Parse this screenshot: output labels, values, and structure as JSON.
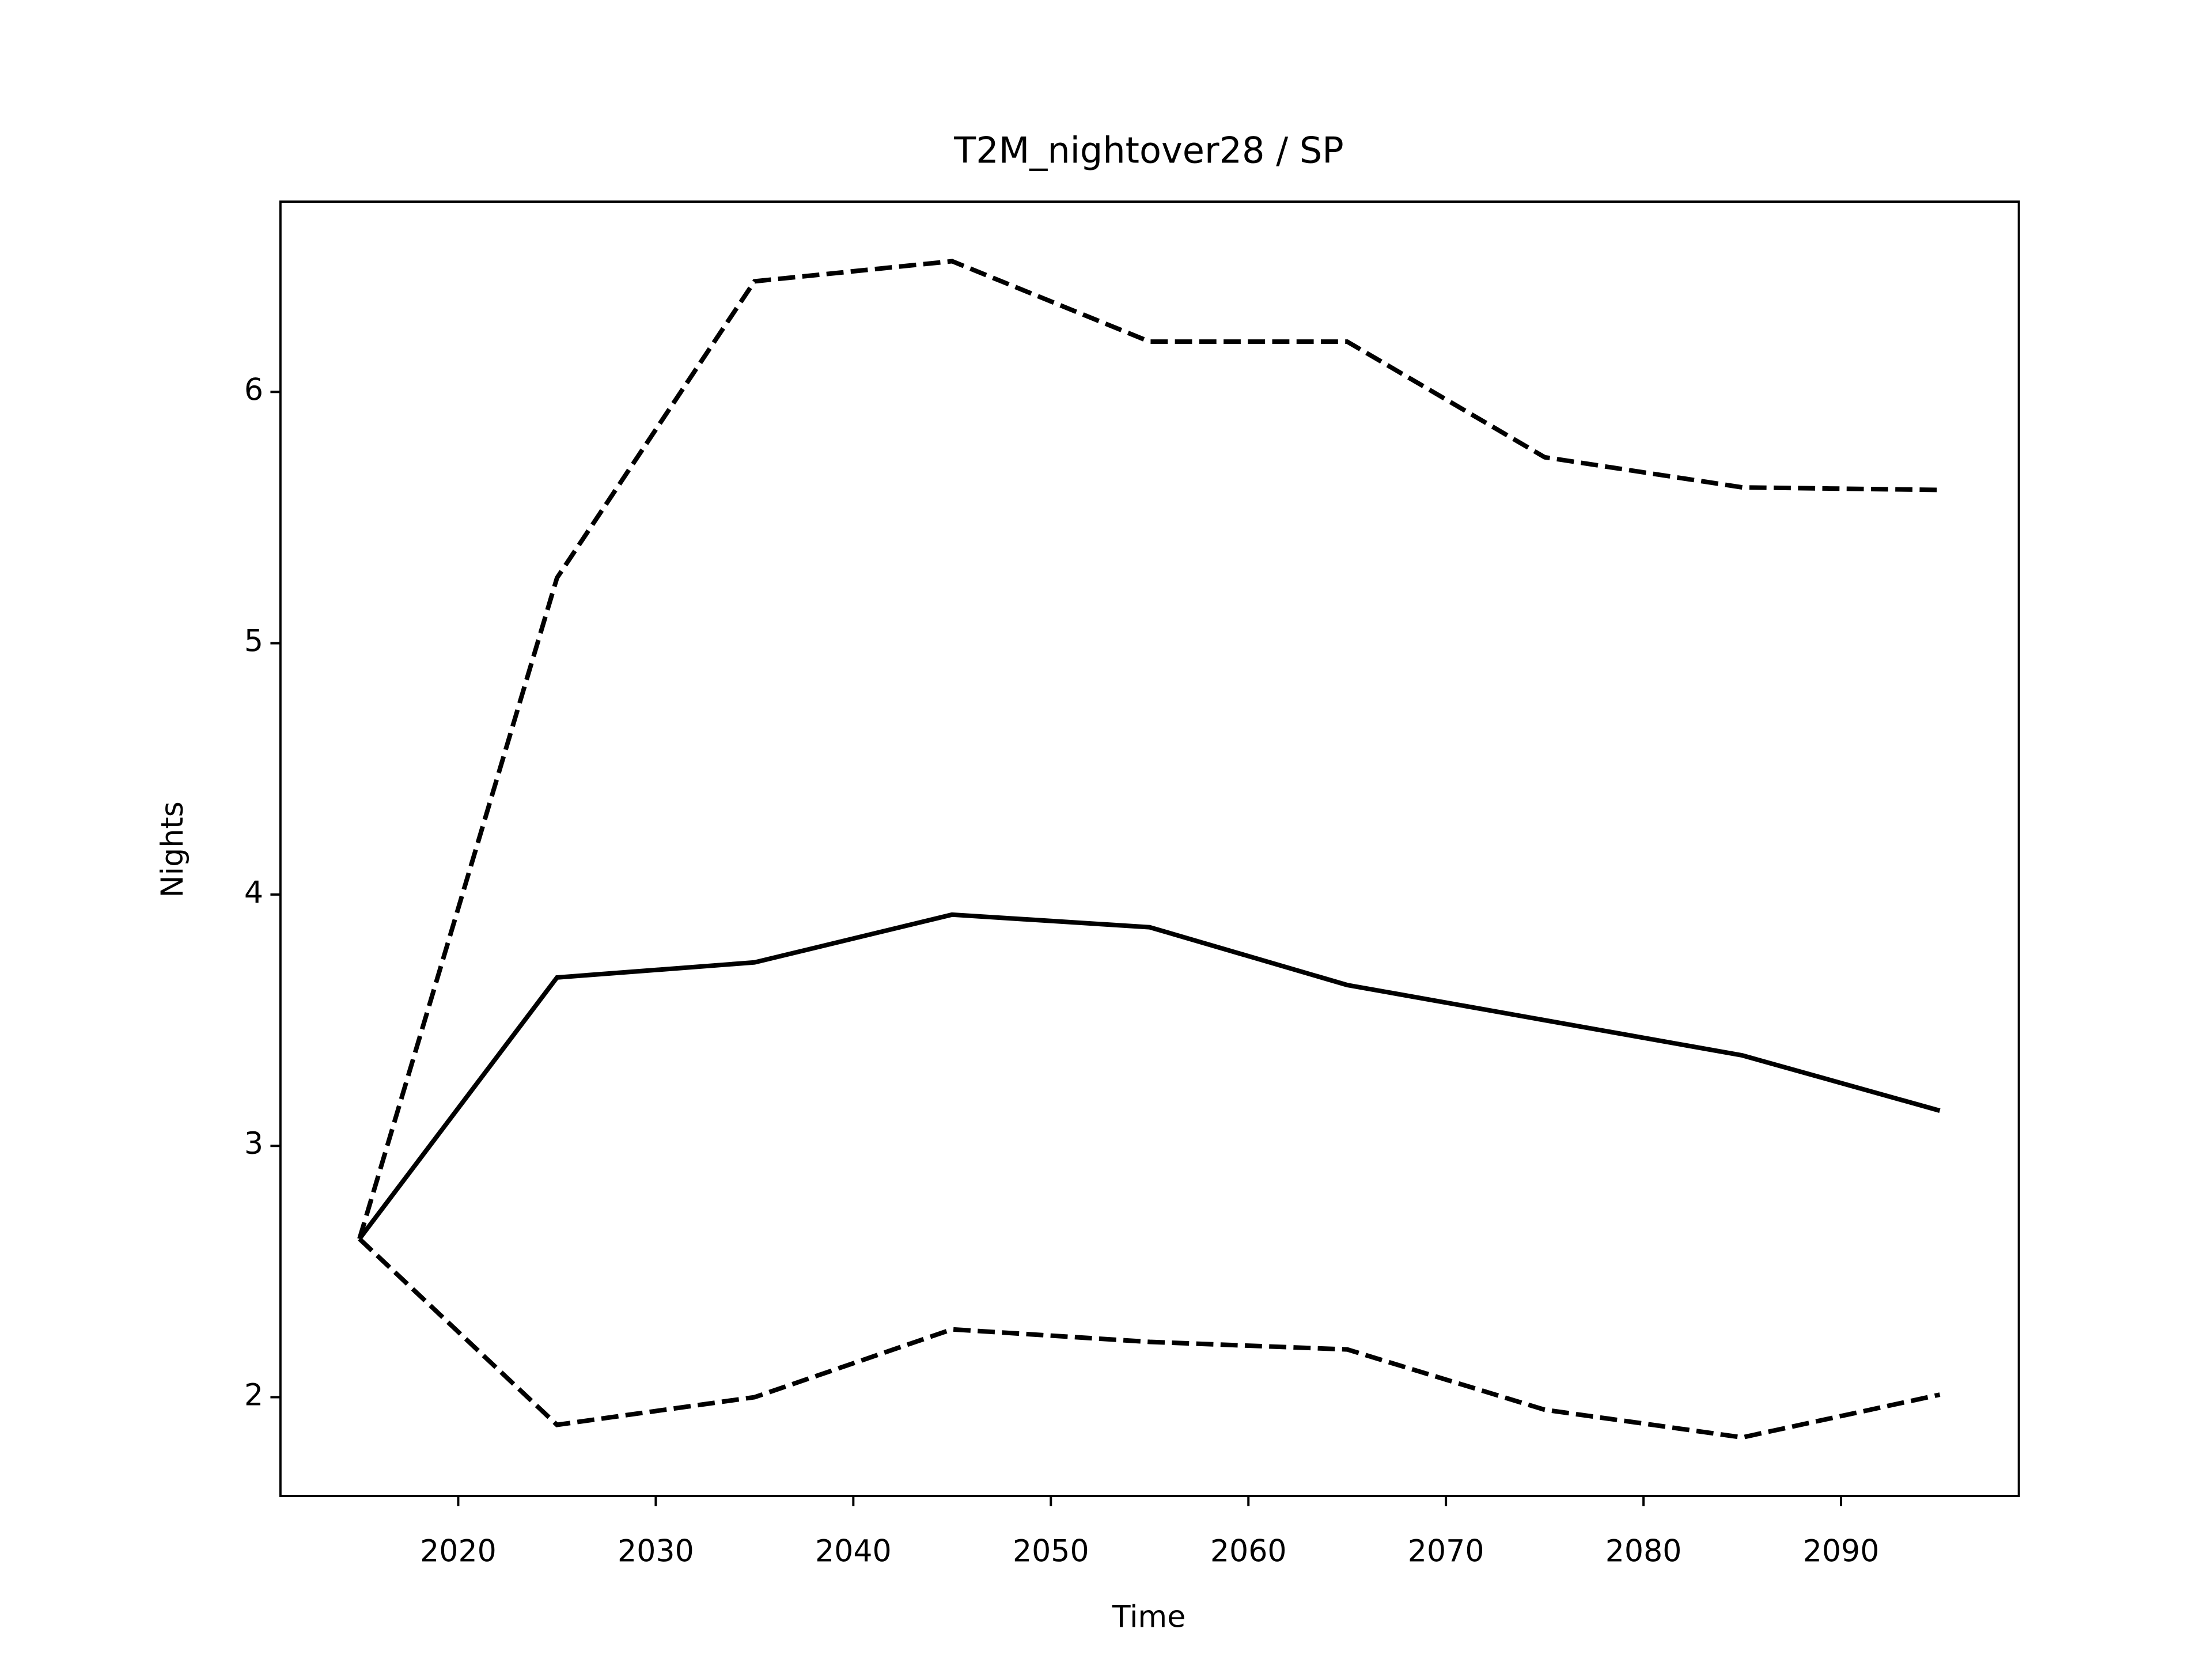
{
  "chart_data": {
    "type": "line",
    "title": "T2M_nightover28 / SP",
    "xlabel": "Time",
    "ylabel": "Nights",
    "x": [
      2015,
      2025,
      2035,
      2045,
      2055,
      2065,
      2075,
      2085,
      2095
    ],
    "series": [
      {
        "color": "#000000",
        "linestyle": "solid",
        "values": [
          2.63,
          3.67,
          3.73,
          3.92,
          3.87,
          3.64,
          3.5,
          3.36,
          3.14
        ]
      },
      {
        "color": "#000000",
        "linestyle": "dashed",
        "values": [
          2.63,
          5.26,
          6.44,
          6.52,
          6.2,
          6.2,
          5.74,
          5.62,
          5.61
        ]
      },
      {
        "color": "#000000",
        "linestyle": "dashed",
        "values": [
          2.63,
          1.89,
          2.0,
          2.27,
          2.22,
          2.19,
          1.95,
          1.84,
          2.01
        ]
      }
    ],
    "xlim": [
      2011,
      2099
    ],
    "xticks": [
      2020,
      2030,
      2040,
      2050,
      2060,
      2070,
      2080,
      2090
    ],
    "ylim": [
      1.607,
      6.757
    ],
    "yticks": [
      2,
      3,
      4,
      5,
      6
    ],
    "grid": false
  }
}
